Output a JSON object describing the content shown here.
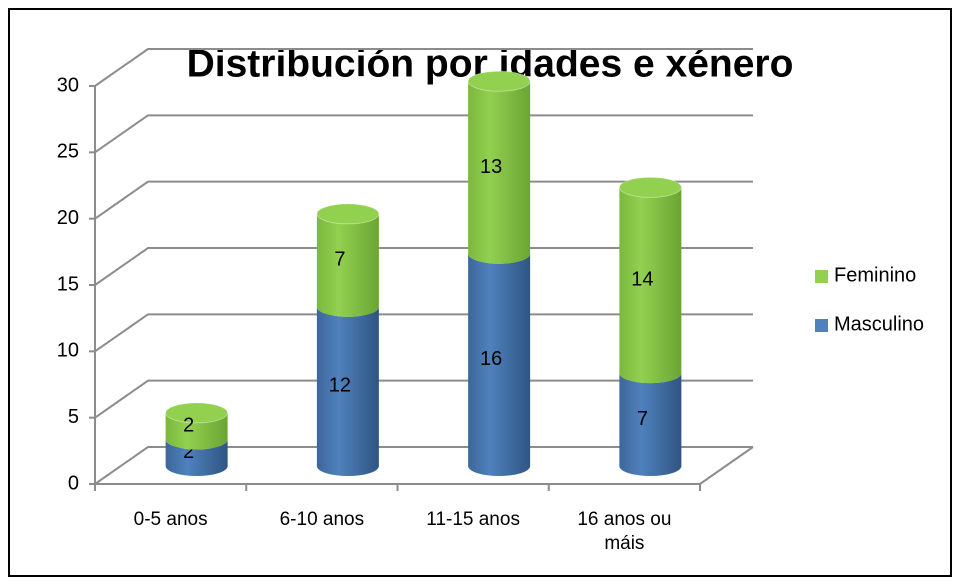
{
  "chart_data": {
    "type": "bar3d-stacked",
    "title": "Distribución por idades e xénero",
    "categories": [
      "0-5 anos",
      "6-10 anos",
      "11-15 anos",
      "16 anos ou máis"
    ],
    "series": [
      {
        "name": "Masculino",
        "color": "#4f81bd",
        "values": [
          2,
          12,
          16,
          7
        ]
      },
      {
        "name": "Feminino",
        "color": "#92d050",
        "values": [
          2,
          7,
          13,
          14
        ]
      }
    ],
    "ylim": [
      0,
      30
    ],
    "yticks": [
      0,
      5,
      10,
      15,
      20,
      25,
      30
    ],
    "grid": true,
    "legend": "right"
  }
}
